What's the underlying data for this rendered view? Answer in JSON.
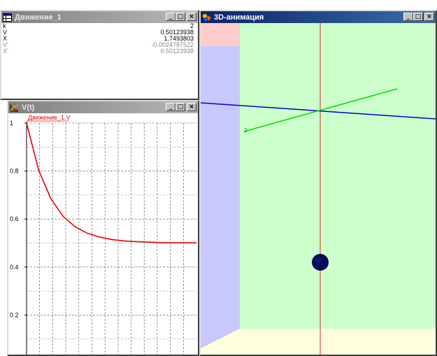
{
  "values_window": {
    "title": "Движение_1",
    "rows": [
      {
        "name": "k",
        "value": "2",
        "muted": false
      },
      {
        "name": "V",
        "value": "0.50123938",
        "muted": false
      },
      {
        "name": "X",
        "value": "1.7493803",
        "muted": false
      },
      {
        "name": "V'",
        "value": "-0.0024787522",
        "muted": true
      },
      {
        "name": "X'",
        "value": "0.50123938",
        "muted": true
      }
    ]
  },
  "plot_window": {
    "title": "V(t)"
  },
  "anim_window": {
    "title": "3D-анимация",
    "axis_label": "2"
  },
  "window_buttons": {
    "minimize": "_",
    "maximize": "□",
    "close": "×"
  },
  "colors": {
    "curve": "#ee0000",
    "back_wall": "#ccffcc",
    "left_wall": "#c8c8ff",
    "floor": "#ffffe0",
    "corner": "#ffcccc",
    "vertical_axis": "#dd2222",
    "blue_axis": "#0000cc",
    "green_axis": "#00dd00",
    "ball": "#0a0a5a"
  },
  "chart_data": {
    "type": "line",
    "series": [
      {
        "name": "Движение_1.V",
        "x": [
          0,
          1,
          2,
          3,
          4,
          5,
          6,
          7,
          8,
          9,
          10,
          11,
          12,
          13,
          14
        ],
        "values": [
          1.0,
          0.803,
          0.685,
          0.612,
          0.568,
          0.541,
          0.525,
          0.515,
          0.509,
          0.506,
          0.504,
          0.502,
          0.501,
          0.501,
          0.501
        ]
      }
    ],
    "yticks": [
      "1",
      "0.8",
      "0.6",
      "0.4",
      "0.2"
    ],
    "ylim": [
      0,
      1.0
    ],
    "xlim": [
      0,
      14
    ],
    "grid": true,
    "title": "",
    "xlabel": "",
    "ylabel": ""
  }
}
